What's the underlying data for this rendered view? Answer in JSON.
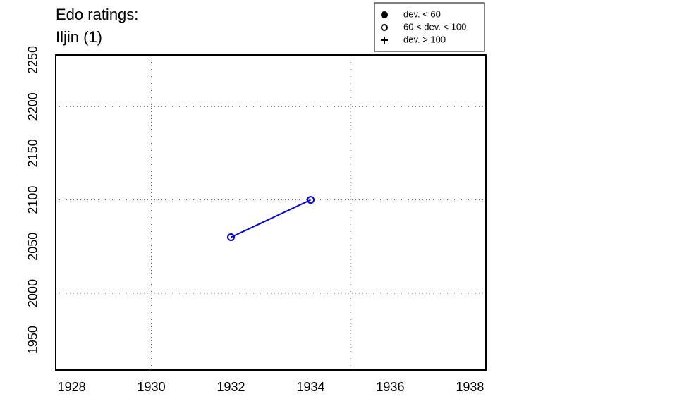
{
  "chart_data": {
    "type": "line",
    "title": "Edo ratings:",
    "subtitle": "Iljin (1)",
    "x": [
      1932,
      1934
    ],
    "series": [
      {
        "color": "#0000ee",
        "marker": "open-circle",
        "values": [
          2060,
          2100
        ]
      }
    ],
    "xlim": [
      1927.6,
      1938.4
    ],
    "xticks": [
      1928,
      1930,
      1932,
      1934,
      1936,
      1938
    ],
    "ylim": [
      1917.6,
      2255.3
    ],
    "yticks": [
      1950,
      2000,
      2050,
      2100,
      2150,
      2200,
      2250
    ],
    "xgrid": [
      1930,
      1935
    ],
    "ygrid": [
      2000,
      2100,
      2200
    ],
    "grid": true,
    "legend": {
      "position": "top-right",
      "items": [
        {
          "label": "dev. < 60",
          "symbol": "filled-circle"
        },
        {
          "label": "60 < dev. < 100",
          "symbol": "open-circle"
        },
        {
          "label": "dev. > 100",
          "symbol": "plus"
        }
      ]
    }
  }
}
